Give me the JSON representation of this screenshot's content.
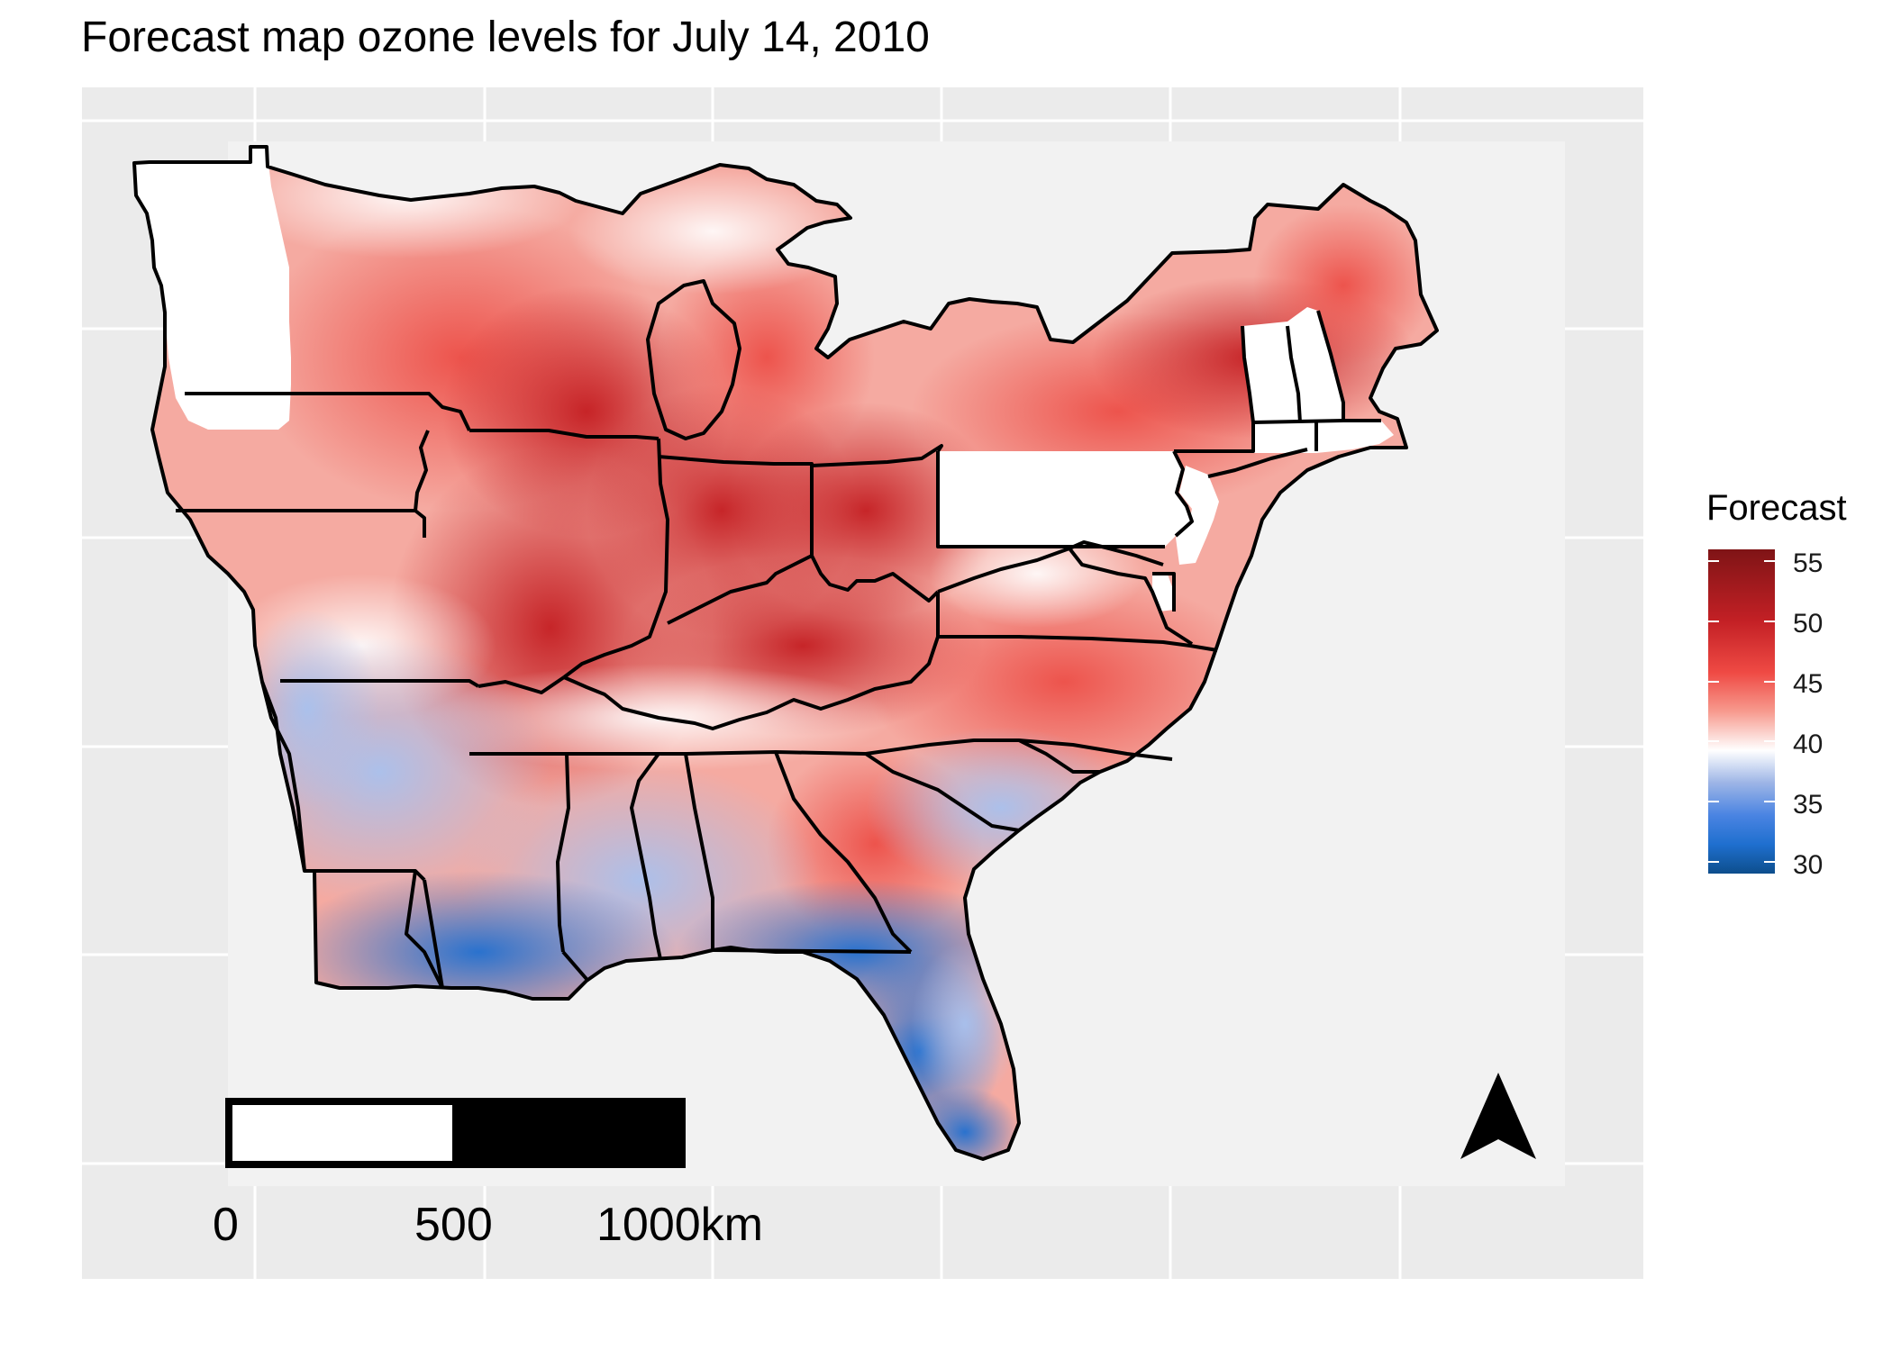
{
  "title": "Forecast map ozone levels for July 14, 2010",
  "legend": {
    "title": "Forecast",
    "ticks": [
      "55",
      "50",
      "45",
      "40",
      "35",
      "30"
    ],
    "range": [
      29,
      56
    ],
    "colors": {
      "high": "#7f1416",
      "mid_high": "#e8433f",
      "mid": "#ffffff",
      "mid_low": "#4a84e2",
      "low": "#0d4e8c"
    }
  },
  "scale_bar": {
    "labels": [
      "0",
      "500",
      "1000km"
    ]
  },
  "north_arrow": "north-arrow-icon",
  "colors": {
    "panel_background": "#ebebeb",
    "map_background": "#f2f2f2",
    "no_data_state": "#ffffff",
    "state_border": "#000000"
  }
}
